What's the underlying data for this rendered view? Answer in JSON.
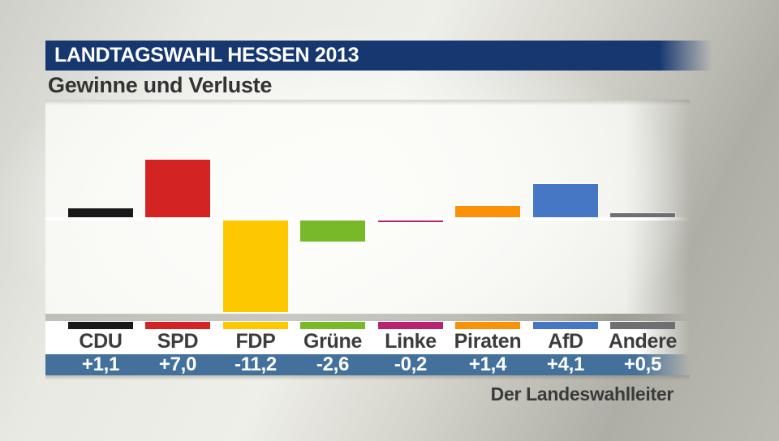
{
  "header": {
    "title": "LANDTAGSWAHL HESSEN 2013",
    "subtitle": "Gewinne und Verluste"
  },
  "footer": {
    "source": "Der Landeswahlleiter"
  },
  "colors": {
    "header_bg": "#16376f",
    "values_band_bg": "#44719c",
    "zero_line": "#ffffff",
    "label_text": "#3c3c3c",
    "value_text": "#ffffff"
  },
  "chart_data": {
    "type": "bar",
    "title": "Gewinne und Verluste",
    "categories": [
      "CDU",
      "SPD",
      "FDP",
      "Grüne",
      "Linke",
      "Piraten",
      "AfD",
      "Andere"
    ],
    "values": [
      1.1,
      7.0,
      -11.2,
      -2.6,
      -0.2,
      1.4,
      4.1,
      0.5
    ],
    "value_labels": [
      "+1,1",
      "+7,0",
      "-11,2",
      "-2,6",
      "-0,2",
      "+1,4",
      "+4,1",
      "+0,5"
    ],
    "bar_colors": [
      "#191919",
      "#d32322",
      "#fdc800",
      "#77b929",
      "#b6236f",
      "#fb9009",
      "#4577c4",
      "#6f6f71"
    ],
    "baseline": 0,
    "ylim": [
      -12,
      8
    ],
    "grid": false,
    "legend_position": "none",
    "xlabel": "",
    "ylabel": ""
  }
}
